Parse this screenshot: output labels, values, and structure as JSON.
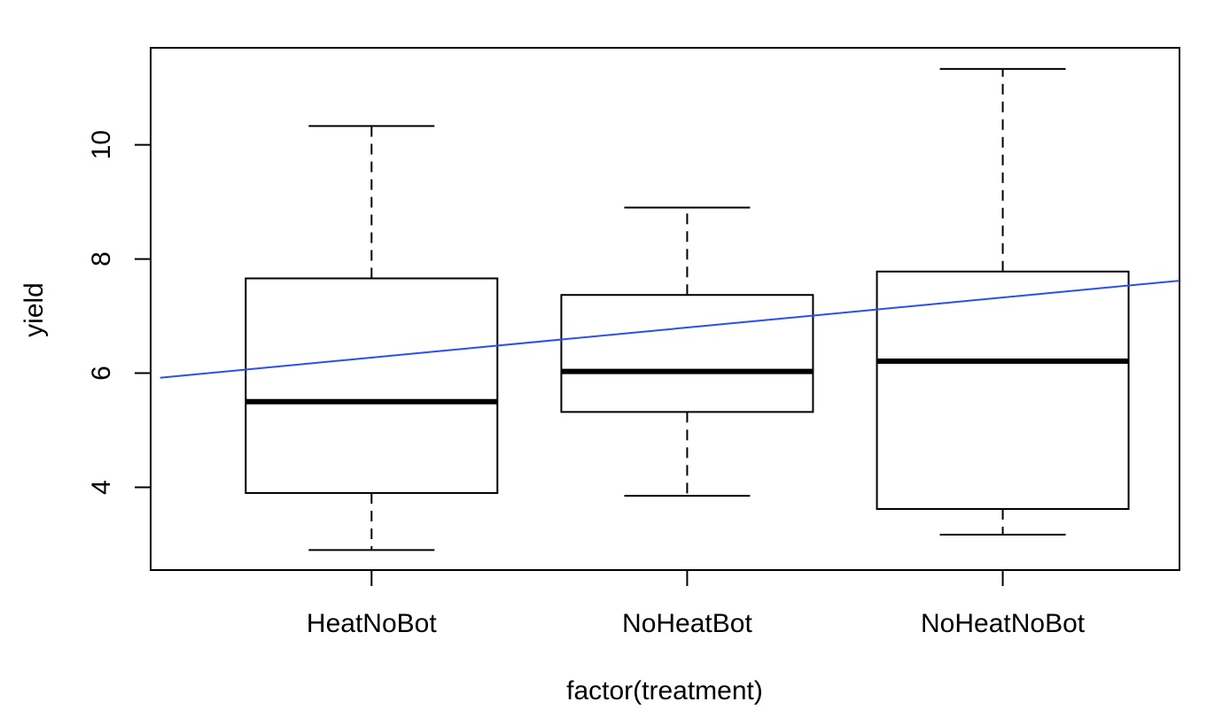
{
  "chart_data": {
    "type": "boxplot",
    "title": "",
    "xlabel": "factor(treatment)",
    "ylabel": "yield",
    "categories": [
      "HeatNoBot",
      "NoHeatBot",
      "NoHeatNoBot"
    ],
    "boxes": [
      {
        "category": "HeatNoBot",
        "min": 2.9,
        "q1": 3.9,
        "median": 5.5,
        "q3": 7.66,
        "max": 10.33
      },
      {
        "category": "NoHeatBot",
        "min": 3.85,
        "q1": 5.32,
        "median": 6.03,
        "q3": 7.37,
        "max": 8.9
      },
      {
        "category": "NoHeatNoBot",
        "min": 3.17,
        "q1": 3.62,
        "median": 6.21,
        "q3": 7.78,
        "max": 11.33
      }
    ],
    "ylim": [
      2.55,
      11.7
    ],
    "yticks": [
      4,
      6,
      8,
      10
    ],
    "ytick_labels": [
      "4",
      "6",
      "8",
      "10"
    ],
    "trend_line": {
      "color": "#2a4ff0",
      "x": [
        0.33,
        3.56
      ],
      "y": [
        5.92,
        7.62
      ]
    },
    "grid": false,
    "legend": "none",
    "colors": {
      "box_fill": "#ffffff",
      "box_stroke": "#000000",
      "median": "#000000"
    }
  }
}
